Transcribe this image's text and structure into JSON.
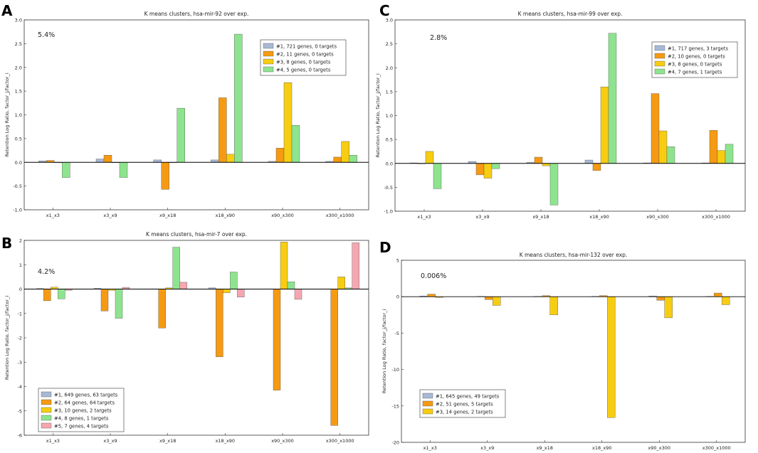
{
  "colors": {
    "series1": "#a8b9d6",
    "series2": "#f59a12",
    "series3": "#f7cd12",
    "series4": "#8ee48e",
    "series5": "#f6a6b0",
    "bar_edge": "#555555"
  },
  "chart_data": [
    {
      "panel_label": "A",
      "type": "bar",
      "title": "K means clusters, hsa-mir-92 over exp.",
      "ylabel": "Retention Log Ratio, factor_j/factor_i",
      "annotation": "5.4%",
      "categories": [
        "x1_x3",
        "x3_x9",
        "x9_x18",
        "x18_x90",
        "x90_x300",
        "x300_x1000"
      ],
      "ylim": [
        -1.0,
        3.0
      ],
      "yticks": [
        -1.0,
        -0.5,
        0.0,
        0.5,
        1.0,
        1.5,
        2.0,
        2.5,
        3.0
      ],
      "ytick_labels": [
        "-1.0",
        "-0.5",
        "0.0",
        "0.5",
        "1.0",
        "1.5",
        "2.0",
        "2.5",
        "3.0"
      ],
      "legend_position": "top-right",
      "series": [
        {
          "name": "#1, 721 genes, 0 targets",
          "values": [
            0.03,
            0.07,
            0.05,
            0.05,
            0.02,
            0.02
          ]
        },
        {
          "name": "#2, 11 genes, 0 targets",
          "values": [
            0.04,
            0.15,
            -0.57,
            1.36,
            0.3,
            0.11
          ]
        },
        {
          "name": "#3, 8 genes, 0 targets",
          "values": [
            0.0,
            0.0,
            0.0,
            0.17,
            1.68,
            0.44
          ]
        },
        {
          "name": "#4, 5 genes, 0 targets",
          "values": [
            -0.32,
            -0.32,
            1.14,
            2.7,
            0.78,
            0.15
          ]
        }
      ]
    },
    {
      "panel_label": "C",
      "type": "bar",
      "title": "K means clusters, hsa-mir-99 over exp.",
      "ylabel": "Retention Log Ratio, factor_j/factor_i",
      "annotation": "2.8%",
      "categories": [
        "x1_x3",
        "x3_x9",
        "x9_x18",
        "x18_x90",
        "x90_x300",
        "x300_x1000"
      ],
      "ylim": [
        -1.0,
        3.0
      ],
      "yticks": [
        -1.0,
        -0.5,
        0.0,
        0.5,
        1.0,
        1.5,
        2.0,
        2.5,
        3.0
      ],
      "ytick_labels": [
        "-1.0",
        "-0.5",
        "0.0",
        "0.5",
        "1.0",
        "1.5",
        "2.0",
        "2.5",
        "3.0"
      ],
      "legend_position": "top-right",
      "series": [
        {
          "name": "#1, 717 genes, 3 targets",
          "values": [
            0.01,
            0.04,
            0.02,
            0.07,
            0.01,
            0.01
          ]
        },
        {
          "name": "#2, 10 genes, 0 targets",
          "values": [
            0.0,
            -0.24,
            0.13,
            -0.15,
            1.46,
            0.69
          ]
        },
        {
          "name": "#3, 8 genes, 0 targets",
          "values": [
            0.25,
            -0.31,
            -0.05,
            1.6,
            0.68,
            0.27
          ]
        },
        {
          "name": "#4, 7 genes, 1 targets",
          "values": [
            -0.53,
            -0.11,
            -0.87,
            2.72,
            0.35,
            0.4
          ]
        }
      ]
    },
    {
      "panel_label": "B",
      "type": "bar",
      "title": "K means clusters, hsa-mir-7 over exp.",
      "ylabel": "Retention Log Ratio, factor_j/factor_i",
      "annotation": "4.2%",
      "categories": [
        "x1_x3",
        "x3_x9",
        "x9_x18",
        "x18_x90",
        "x90_x300",
        "x300_x1000"
      ],
      "ylim": [
        -6.0,
        2.0
      ],
      "yticks": [
        -6,
        -5,
        -4,
        -3,
        -2,
        -1,
        0,
        1,
        2
      ],
      "ytick_labels": [
        "-6",
        "-5",
        "-4",
        "-3",
        "-2",
        "-1",
        "0",
        "1",
        "2"
      ],
      "legend_position": "bottom-left",
      "series": [
        {
          "name": "#1, 649 genes, 63 targets",
          "values": [
            0.02,
            0.03,
            0.01,
            0.05,
            0.01,
            0.01
          ]
        },
        {
          "name": "#2, 64 genes, 64 targets",
          "values": [
            -0.48,
            -0.9,
            -1.6,
            -2.78,
            -4.15,
            -5.6
          ]
        },
        {
          "name": "#3, 10 genes, 2 targets",
          "values": [
            0.08,
            -0.05,
            0.05,
            -0.15,
            1.93,
            0.5
          ]
        },
        {
          "name": "#4, 8 genes, 1 targets",
          "values": [
            -0.4,
            -1.2,
            1.72,
            0.7,
            0.3,
            0.05
          ]
        },
        {
          "name": "#5, 7 genes, 4 targets",
          "values": [
            -0.05,
            0.07,
            0.28,
            -0.33,
            -0.42,
            1.9
          ]
        }
      ]
    },
    {
      "panel_label": "D",
      "type": "bar",
      "title": "K means clusters, hsa-mir-132 over exp.",
      "ylabel": "Retention Log Ratio, factor_j/factor_i",
      "annotation": "0.006%",
      "categories": [
        "x1_x3",
        "x3_x9",
        "x9_x18",
        "x18_x90",
        "x90_x300",
        "x300_x1000"
      ],
      "ylim": [
        -20.0,
        5.0
      ],
      "yticks": [
        -20,
        -15,
        -10,
        -5,
        0,
        5
      ],
      "ytick_labels": [
        "-20",
        "-15",
        "-10",
        "-5",
        "0",
        "5"
      ],
      "legend_position": "bottom-left",
      "series": [
        {
          "name": "#1, 645 genes, 49 targets",
          "values": [
            0.1,
            0.05,
            0.05,
            0.05,
            0.1,
            0.05
          ]
        },
        {
          "name": "#2, 51 genes, 5 targets",
          "values": [
            0.35,
            -0.4,
            0.15,
            0.15,
            -0.5,
            0.5
          ]
        },
        {
          "name": "#3, 14 genes, 2 targets",
          "values": [
            -0.1,
            -1.2,
            -2.5,
            -16.6,
            -2.9,
            -1.1
          ]
        }
      ]
    }
  ]
}
